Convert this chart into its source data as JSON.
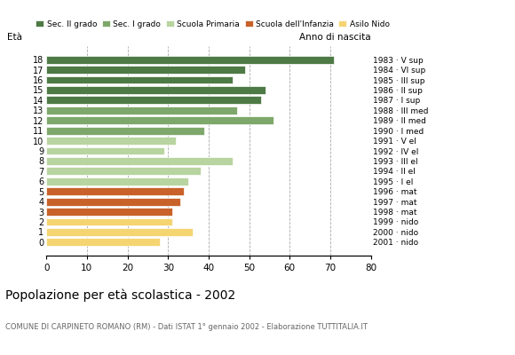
{
  "ages": [
    18,
    17,
    16,
    15,
    14,
    13,
    12,
    11,
    10,
    9,
    8,
    7,
    6,
    5,
    4,
    3,
    2,
    1,
    0
  ],
  "values": [
    71,
    49,
    46,
    54,
    53,
    47,
    56,
    39,
    32,
    29,
    46,
    38,
    35,
    34,
    33,
    31,
    31,
    36,
    28
  ],
  "right_labels": [
    "1983 · V sup",
    "1984 · VI sup",
    "1985 · III sup",
    "1986 · II sup",
    "1987 · I sup",
    "1988 · III med",
    "1989 · II med",
    "1990 · I med",
    "1991 · V el",
    "1992 · IV el",
    "1993 · III el",
    "1994 · II el",
    "1995 · I el",
    "1996 · mat",
    "1997 · mat",
    "1998 · mat",
    "1999 · nido",
    "2000 · nido",
    "2001 · nido"
  ],
  "colors": [
    "#4e7a45",
    "#4e7a45",
    "#4e7a45",
    "#4e7a45",
    "#4e7a45",
    "#7ea86b",
    "#7ea86b",
    "#7ea86b",
    "#b8d4a0",
    "#b8d4a0",
    "#b8d4a0",
    "#b8d4a0",
    "#b8d4a0",
    "#c8622a",
    "#c8622a",
    "#c8622a",
    "#f5d472",
    "#f5d472",
    "#f5d472"
  ],
  "legend_labels": [
    "Sec. II grado",
    "Sec. I grado",
    "Scuola Primaria",
    "Scuola dell'Infanzia",
    "Asilo Nido"
  ],
  "legend_colors": [
    "#4e7a45",
    "#7ea86b",
    "#b8d4a0",
    "#c8622a",
    "#f5d472"
  ],
  "title": "Popolazione per età scolastica - 2002",
  "subtitle": "COMUNE DI CARPINETO ROMANO (RM) - Dati ISTAT 1° gennaio 2002 - Elaborazione TUTTITALIA.IT",
  "label_eta": "Età",
  "label_anno": "Anno di nascita",
  "xlim": [
    0,
    80
  ],
  "xticks": [
    0,
    10,
    20,
    30,
    40,
    50,
    60,
    70,
    80
  ],
  "grid_color": "#aaaaaa",
  "bar_height": 0.78,
  "background_color": "#ffffff"
}
